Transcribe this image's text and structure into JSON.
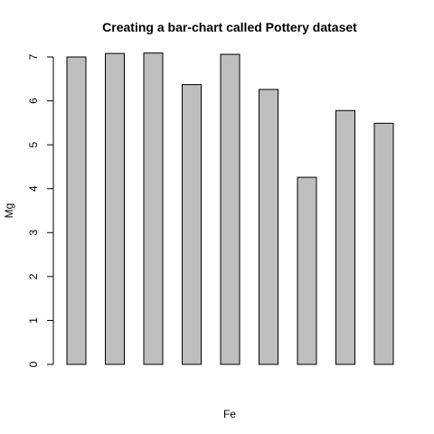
{
  "chart_data": {
    "type": "bar",
    "title": "Creating a bar-chart called Pottery dataset",
    "xlabel": "Fe",
    "ylabel": "Mg",
    "ylim": [
      0,
      7
    ],
    "yticks": [
      0,
      1,
      2,
      3,
      4,
      5,
      6,
      7
    ],
    "values": [
      7.0,
      7.08,
      7.09,
      6.37,
      7.06,
      6.26,
      4.26,
      5.78,
      5.49
    ],
    "grid": false,
    "bar_color": "#bebebe",
    "border_color": "#000000"
  }
}
